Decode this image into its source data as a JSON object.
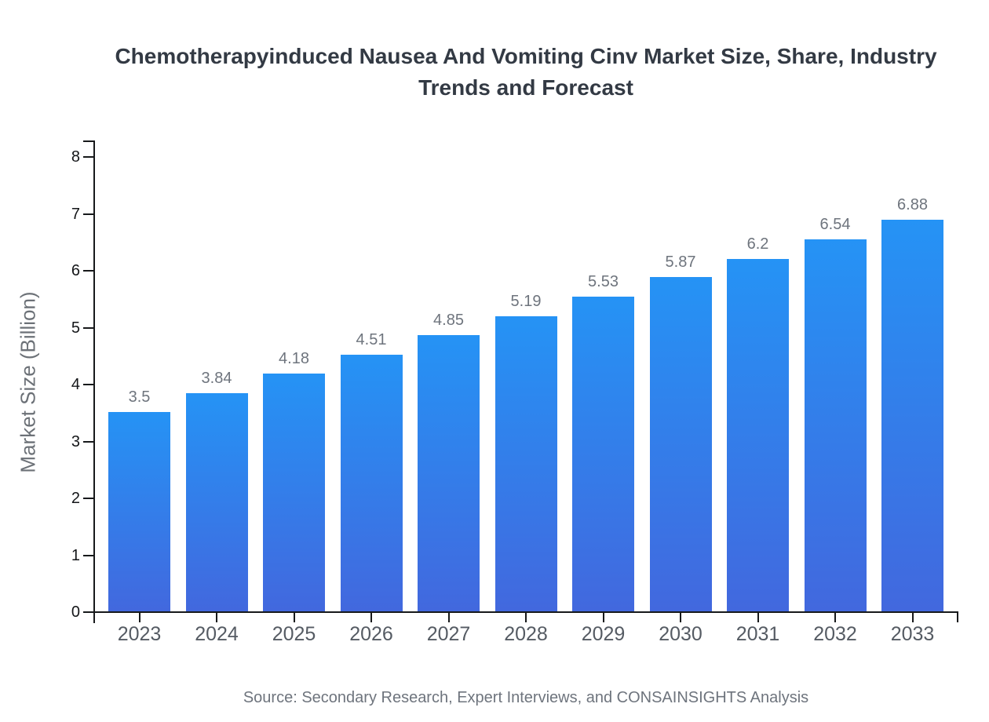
{
  "title": "Chemotherapyinduced Nausea And Vomiting Cinv Market Size, Share, Industry Trends and Forecast",
  "source_note": "Source: Secondary Research, Expert Interviews, and CONSAINSIGHTS Analysis",
  "chart_data": {
    "type": "bar",
    "title": "Chemotherapyinduced Nausea And Vomiting Cinv Market Size, Share, Industry Trends and Forecast",
    "categories": [
      "2023",
      "2024",
      "2025",
      "2026",
      "2027",
      "2028",
      "2029",
      "2030",
      "2031",
      "2032",
      "2033"
    ],
    "values": [
      3.5,
      3.84,
      4.18,
      4.51,
      4.85,
      5.19,
      5.53,
      5.87,
      6.2,
      6.54,
      6.88
    ],
    "value_labels": [
      "3.5",
      "3.84",
      "4.18",
      "4.51",
      "4.85",
      "5.19",
      "5.53",
      "5.87",
      "6.2",
      "6.54",
      "6.88"
    ],
    "xlabel": "",
    "ylabel": "Market Size (Billion)",
    "ylim": [
      0,
      8
    ],
    "yticks": [
      0,
      1,
      2,
      3,
      4,
      5,
      6,
      7,
      8
    ],
    "grid": false,
    "legend": false,
    "colors": {
      "bar_gradient_top": "#2593f5",
      "bar_gradient_bottom": "#4268de",
      "axis": "#17191b",
      "value_label": "#6e747d",
      "x_tick_label": "#555b63",
      "y_tick_label": "#141619",
      "title": "#333a44",
      "y_axis_title": "#6c7177",
      "source": "#6e747d"
    },
    "source": "Source: Secondary Research, Expert Interviews, and CONSAINSIGHTS Analysis"
  }
}
